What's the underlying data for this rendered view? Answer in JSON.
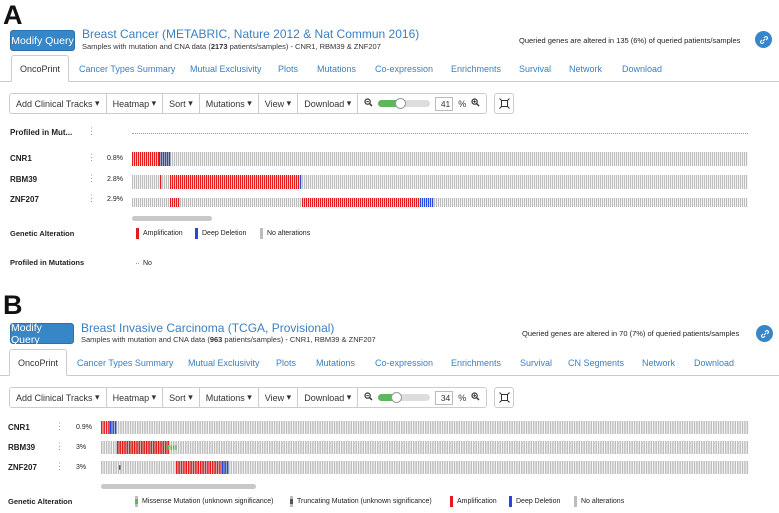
{
  "panels": [
    {
      "letter": "A",
      "modify_label": "Modify Query",
      "study_title": "Breast Cancer (METABRIC, Nature 2012 & Nat Commun 2016)",
      "sub_pre": "Samples with mutation and CNA data (",
      "sub_count": "2173",
      "sub_post": " patients/samples)  - CNR1, RBM39 & ZNF207",
      "altered_msg": "Queried genes are altered in 135 (6%) of queried patients/samples",
      "tabs": [
        "OncoPrint",
        "Cancer Types Summary",
        "Mutual Exclusivity",
        "Plots",
        "Mutations",
        "Co-expression",
        "Enrichments",
        "Survival",
        "Network",
        "Download"
      ],
      "toolbar": [
        "Add Clinical Tracks",
        "Heatmap",
        "Sort",
        "Mutations",
        "View",
        "Download"
      ],
      "zoom": {
        "value": "41",
        "unit": "%",
        "fraction": 0.41
      },
      "profiled_label": "Profiled in Mut...",
      "tracks": [
        {
          "gene": "CNR1",
          "pct": "0.8%"
        },
        {
          "gene": "RBM39",
          "pct": "2.8%"
        },
        {
          "gene": "ZNF207",
          "pct": "2.9%"
        }
      ],
      "legend": {
        "genetic_title": "Genetic Alteration",
        "genetic_items": [
          {
            "label": "Amplification",
            "color": "#e41a1c"
          },
          {
            "label": "Deep Deletion",
            "color": "#2447e0"
          },
          {
            "label": "No alterations",
            "color": "#bdbdbd"
          }
        ],
        "profiled_title": "Profiled in Mutations",
        "profiled_items": [
          {
            "label": "No"
          }
        ]
      }
    },
    {
      "letter": "B",
      "modify_label": "Modify Query",
      "study_title": "Breast Invasive Carcinoma (TCGA, Provisional)",
      "sub_pre": "Samples with mutation and CNA data (",
      "sub_count": "963",
      "sub_post": " patients/samples)  - CNR1, RBM39 & ZNF207",
      "altered_msg": "Queried genes are altered in 70 (7%) of queried patients/samples",
      "tabs": [
        "OncoPrint",
        "Cancer Types Summary",
        "Mutual Exclusivity",
        "Plots",
        "Mutations",
        "Co-expression",
        "Enrichments",
        "Survival",
        "CN Segments",
        "Network",
        "Download"
      ],
      "toolbar": [
        "Add Clinical Tracks",
        "Heatmap",
        "Sort",
        "Mutations",
        "View",
        "Download"
      ],
      "zoom": {
        "value": "34",
        "unit": "%",
        "fraction": 0.34
      },
      "tracks": [
        {
          "gene": "CNR1",
          "pct": "0.9%"
        },
        {
          "gene": "RBM39",
          "pct": "3%"
        },
        {
          "gene": "ZNF207",
          "pct": "3%"
        }
      ],
      "legend": {
        "genetic_title": "Genetic Alteration",
        "genetic_items": [
          {
            "label": "Missense Mutation (unknown significance)",
            "color": "#5cb85c"
          },
          {
            "label": "Truncating Mutation (unknown significance)",
            "color": "#555555"
          },
          {
            "label": "Amplification",
            "color": "#e41a1c"
          },
          {
            "label": "Deep Deletion",
            "color": "#2447e0"
          },
          {
            "label": "No alterations",
            "color": "#bdbdbd"
          }
        ]
      }
    }
  ],
  "colors": {
    "no_alteration": "#bdbdbd",
    "amplification": "#e41a1c",
    "deep_deletion": "#2447e0",
    "missense": "#5cb85c",
    "truncating": "#555555",
    "link": "#3a7fc1",
    "button": "#3786c8"
  },
  "icons": {
    "dropdown": "caret-down-icon",
    "zoom_out": "zoom-out-icon",
    "zoom_in": "zoom-in-icon",
    "fit": "fit-to-view-icon",
    "link": "link-icon",
    "drag": "drag-handle-icon"
  }
}
